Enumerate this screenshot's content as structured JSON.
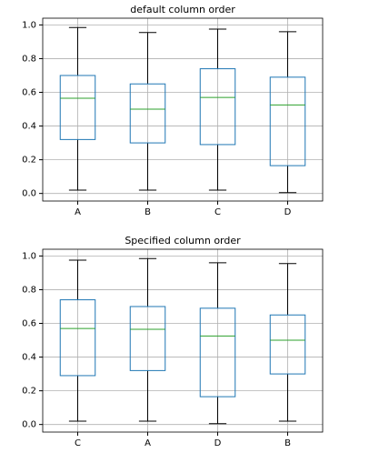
{
  "chart_data": [
    {
      "type": "box",
      "title": "default column order",
      "categories": [
        "A",
        "B",
        "C",
        "D"
      ],
      "values": [
        [
          0.02,
          0.32,
          0.565,
          0.7,
          0.985
        ],
        [
          0.02,
          0.3,
          0.5,
          0.65,
          0.955
        ],
        [
          0.02,
          0.29,
          0.57,
          0.74,
          0.975
        ],
        [
          0.005,
          0.165,
          0.525,
          0.69,
          0.96
        ]
      ],
      "color": "#1f77b4",
      "median_color": "#2ca02c",
      "whisker_color": "#000000",
      "ylim": [
        -0.045,
        1.04
      ],
      "yticks": [
        {
          "value": 0,
          "label": "0.0"
        },
        0.2,
        0.4,
        0.6,
        0.8,
        {
          "value": 1,
          "label": "1.0"
        }
      ],
      "grid": true
    },
    {
      "type": "box",
      "title": "Specified column order",
      "categories": [
        "C",
        "A",
        "D",
        "B"
      ],
      "values": [
        [
          0.02,
          0.29,
          0.57,
          0.74,
          0.975
        ],
        [
          0.02,
          0.32,
          0.565,
          0.7,
          0.985
        ],
        [
          0.005,
          0.165,
          0.525,
          0.69,
          0.96
        ],
        [
          0.02,
          0.3,
          0.5,
          0.65,
          0.955
        ]
      ],
      "color": "#1f77b4",
      "median_color": "#2ca02c",
      "whisker_color": "#000000",
      "ylim": [
        -0.045,
        1.04
      ],
      "yticks": [
        {
          "value": 0,
          "label": "0.0"
        },
        0.2,
        0.4,
        0.6,
        0.8,
        {
          "value": 1,
          "label": "1.0"
        }
      ],
      "grid": true
    }
  ]
}
